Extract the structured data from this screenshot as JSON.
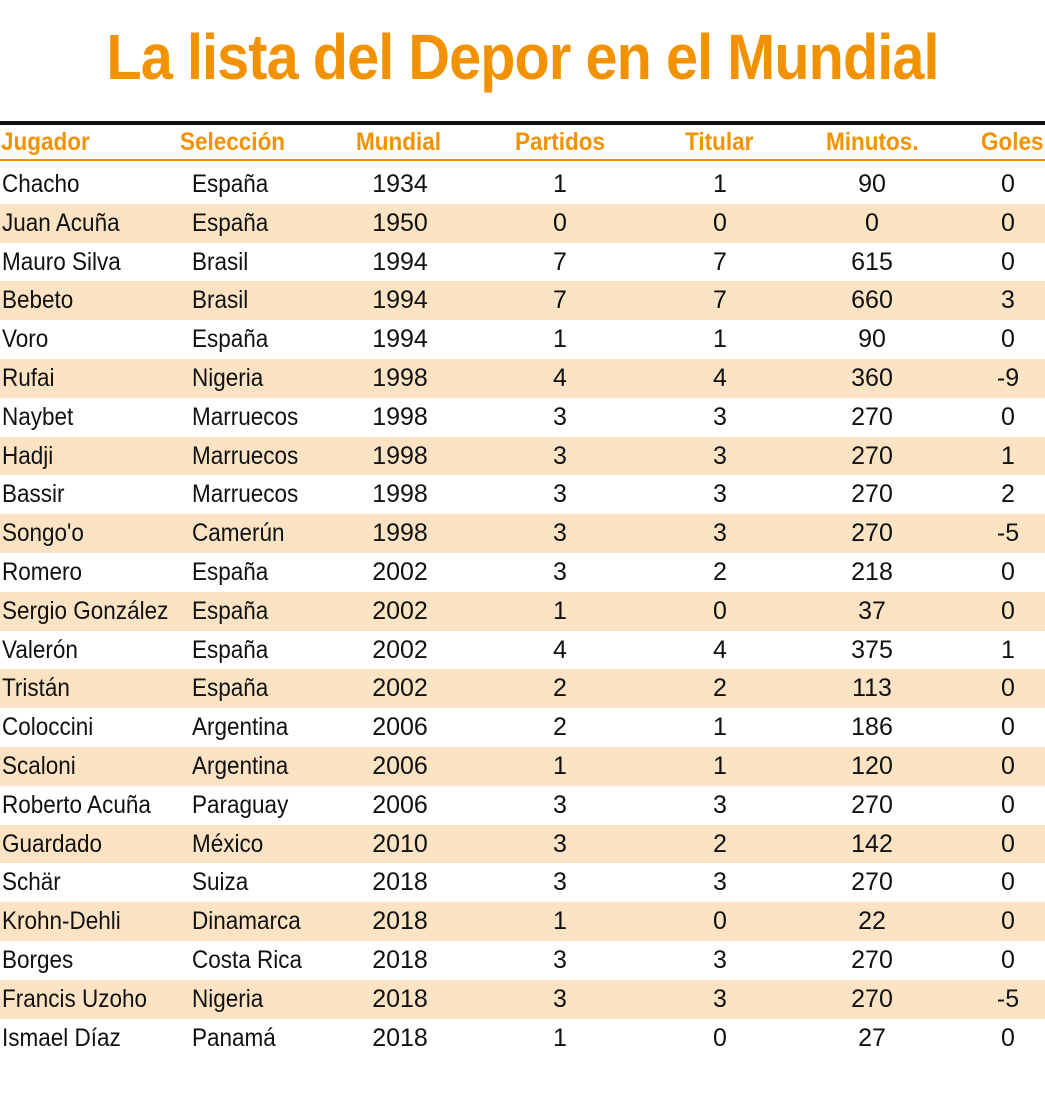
{
  "title": "La lista del Depor en el Mundial",
  "colors": {
    "accent": "#F39200",
    "stripe": "#FCE3C4",
    "text": "#111111"
  },
  "chart_data": {
    "type": "table",
    "title": "La lista del Depor en el Mundial",
    "columns": [
      "Jugador",
      "Selección",
      "Mundial",
      "Partidos",
      "Titular",
      "Minutos.",
      "Goles"
    ],
    "rows": [
      [
        "Chacho",
        "España",
        "1934",
        "1",
        "1",
        "90",
        "0"
      ],
      [
        "Juan Acuña",
        "España",
        "1950",
        "0",
        "0",
        "0",
        "0"
      ],
      [
        "Mauro Silva",
        "Brasil",
        "1994",
        "7",
        "7",
        "615",
        "0"
      ],
      [
        "Bebeto",
        "Brasil",
        "1994",
        "7",
        "7",
        "660",
        "3"
      ],
      [
        "Voro",
        "España",
        "1994",
        "1",
        "1",
        "90",
        "0"
      ],
      [
        "Rufai",
        "Nigeria",
        "1998",
        "4",
        "4",
        "360",
        "-9"
      ],
      [
        "Naybet",
        "Marruecos",
        "1998",
        "3",
        "3",
        "270",
        "0"
      ],
      [
        "Hadji",
        "Marruecos",
        "1998",
        "3",
        "3",
        "270",
        "1"
      ],
      [
        "Bassir",
        "Marruecos",
        "1998",
        "3",
        "3",
        "270",
        "2"
      ],
      [
        "Songo'o",
        "Camerún",
        "1998",
        "3",
        "3",
        "270",
        "-5"
      ],
      [
        "Romero",
        "España",
        "2002",
        "3",
        "2",
        "218",
        "0"
      ],
      [
        "Sergio González",
        "España",
        "2002",
        "1",
        "0",
        "37",
        "0"
      ],
      [
        "Valerón",
        "España",
        "2002",
        "4",
        "4",
        "375",
        "1"
      ],
      [
        "Tristán",
        "España",
        "2002",
        "2",
        "2",
        "113",
        "0"
      ],
      [
        "Coloccini",
        "Argentina",
        "2006",
        "2",
        "1",
        "186",
        "0"
      ],
      [
        "Scaloni",
        "Argentina",
        "2006",
        "1",
        "1",
        "120",
        "0"
      ],
      [
        "Roberto Acuña",
        "Paraguay",
        "2006",
        "3",
        "3",
        "270",
        "0"
      ],
      [
        "Guardado",
        "México",
        "2010",
        "3",
        "2",
        "142",
        "0"
      ],
      [
        "Schär",
        "Suiza",
        "2018",
        "3",
        "3",
        "270",
        "0"
      ],
      [
        "Krohn-Dehli",
        "Dinamarca",
        "2018",
        "1",
        "0",
        "22",
        "0"
      ],
      [
        "Borges",
        "Costa Rica",
        "2018",
        "3",
        "3",
        "270",
        "0"
      ],
      [
        "Francis Uzoho",
        "Nigeria",
        "2018",
        "3",
        "3",
        "270",
        "-5"
      ],
      [
        "Ismael Díaz",
        "Panamá",
        "2018",
        "1",
        "0",
        "27",
        "0"
      ]
    ]
  }
}
